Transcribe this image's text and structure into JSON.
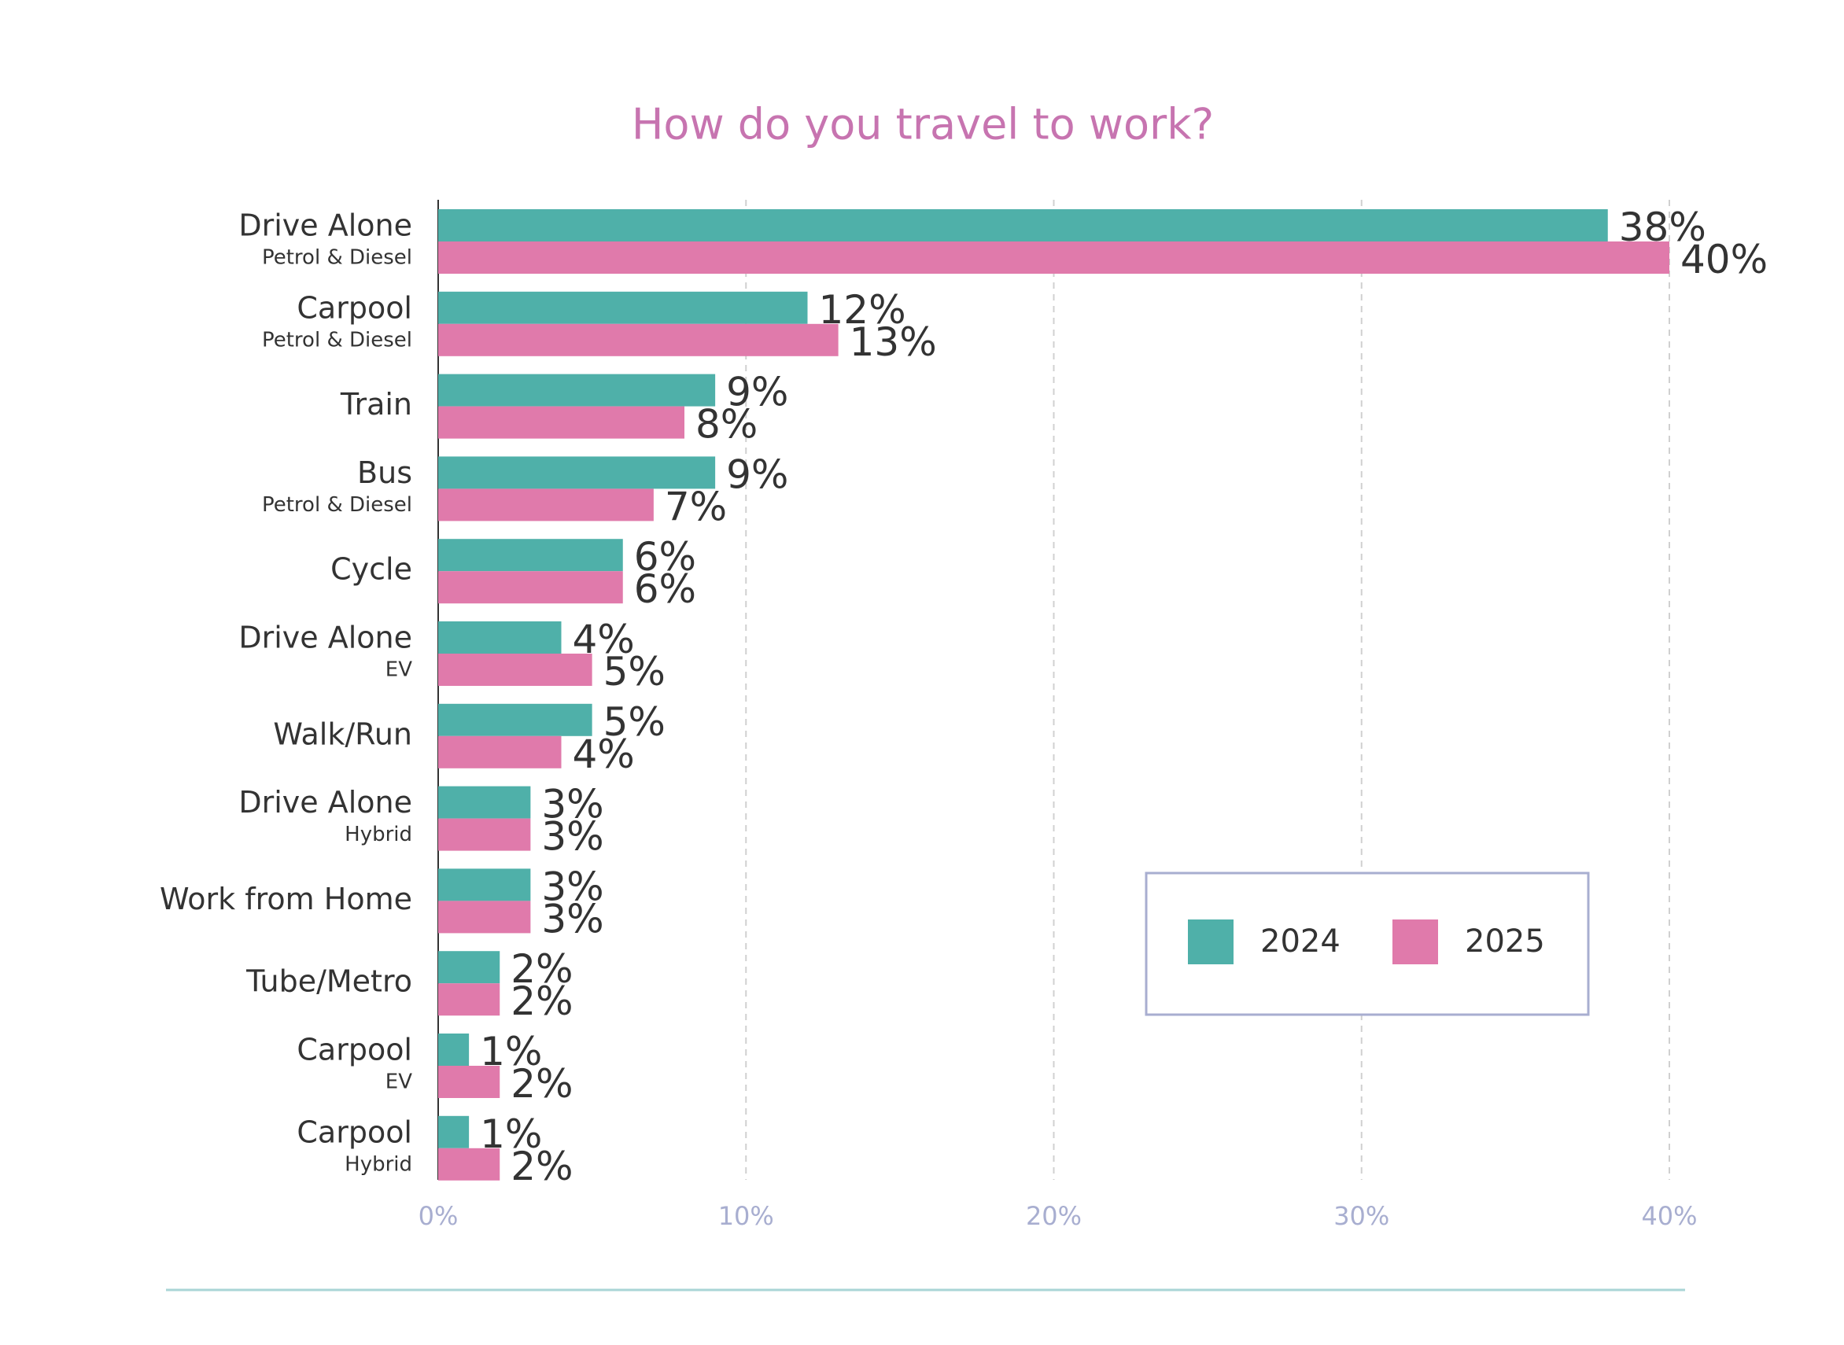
{
  "chart_data": {
    "type": "hbar",
    "title": "How do you travel to work?",
    "categories": [
      "Drive Alone",
      "Carpool",
      "Train",
      "Bus",
      "Cycle",
      "Drive Alone",
      "Walk/Run",
      "Drive Alone",
      "Work from Home",
      "Tube/Metro",
      "Carpool",
      "Carpool"
    ],
    "subcategories": [
      "Petrol & Diesel",
      "Petrol & Diesel",
      null,
      "Petrol & Diesel",
      null,
      "EV",
      null,
      "Hybrid",
      null,
      null,
      "EV",
      "Hybrid"
    ],
    "series": [
      {
        "name": "2024",
        "color": "#4fb0a9",
        "values": [
          38,
          12,
          9,
          9,
          6,
          4,
          5,
          3,
          3,
          2,
          1,
          1
        ],
        "value_labels": [
          "38%",
          "12%",
          "9%",
          "9%",
          "6%",
          "4%",
          "5%",
          "3%",
          "3%",
          "2%",
          "1%",
          "1%"
        ]
      },
      {
        "name": "2025",
        "color": "#e07aab",
        "values": [
          40,
          13,
          8,
          7,
          6,
          5,
          4,
          3,
          3,
          2,
          2,
          2
        ],
        "value_labels": [
          "40%",
          "13%",
          "8%",
          "7%",
          "6%",
          "5%",
          "4%",
          "3%",
          "3%",
          "2%",
          "2%",
          "2%"
        ]
      }
    ],
    "xlim": [
      0,
      40
    ],
    "xticks": [
      {
        "value": 0,
        "label": "0%"
      },
      {
        "value": 10,
        "label": "10%"
      },
      {
        "value": 20,
        "label": "20%"
      },
      {
        "value": 30,
        "label": "30%"
      },
      {
        "value": 40,
        "label": "40%"
      }
    ],
    "grid": true
  }
}
